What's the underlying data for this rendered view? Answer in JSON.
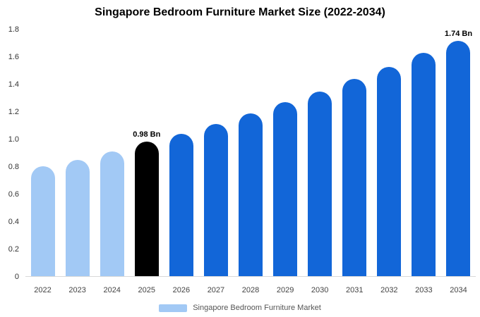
{
  "title": "Singapore Bedroom Furniture Market Size (2022-2034)",
  "legend": {
    "label": "Singapore Bedroom Furniture Market",
    "swatch_color": "#a2c9f5"
  },
  "colors": {
    "historical": "#a2c9f5",
    "highlight": "#000000",
    "forecast": "#1266d8"
  },
  "chart_data": {
    "type": "bar",
    "title": "Singapore Bedroom Furniture Market Size (2022-2034)",
    "xlabel": "",
    "ylabel": "",
    "ylim": [
      0,
      1.8
    ],
    "y_ticks": [
      "0",
      "0.2",
      "0.4",
      "0.6",
      "0.8",
      "1.0",
      "1.2",
      "1.4",
      "1.6",
      "1.8"
    ],
    "categories": [
      "2022",
      "2023",
      "2024",
      "2025",
      "2026",
      "2027",
      "2028",
      "2029",
      "2030",
      "2031",
      "2032",
      "2033",
      "2034"
    ],
    "values": [
      0.8,
      0.85,
      0.91,
      0.98,
      1.04,
      1.11,
      1.19,
      1.27,
      1.35,
      1.44,
      1.53,
      1.63,
      1.74
    ],
    "bar_colors": [
      "#a2c9f5",
      "#a2c9f5",
      "#a2c9f5",
      "#000000",
      "#1266d8",
      "#1266d8",
      "#1266d8",
      "#1266d8",
      "#1266d8",
      "#1266d8",
      "#1266d8",
      "#1266d8",
      "#1266d8"
    ],
    "annotations": [
      {
        "category": "2025",
        "text": "0.98 Bn"
      },
      {
        "category": "2034",
        "text": "1.74 Bn"
      }
    ],
    "legend_entries": [
      "Singapore Bedroom Furniture Market"
    ],
    "legend_position": "bottom",
    "grid": false
  }
}
